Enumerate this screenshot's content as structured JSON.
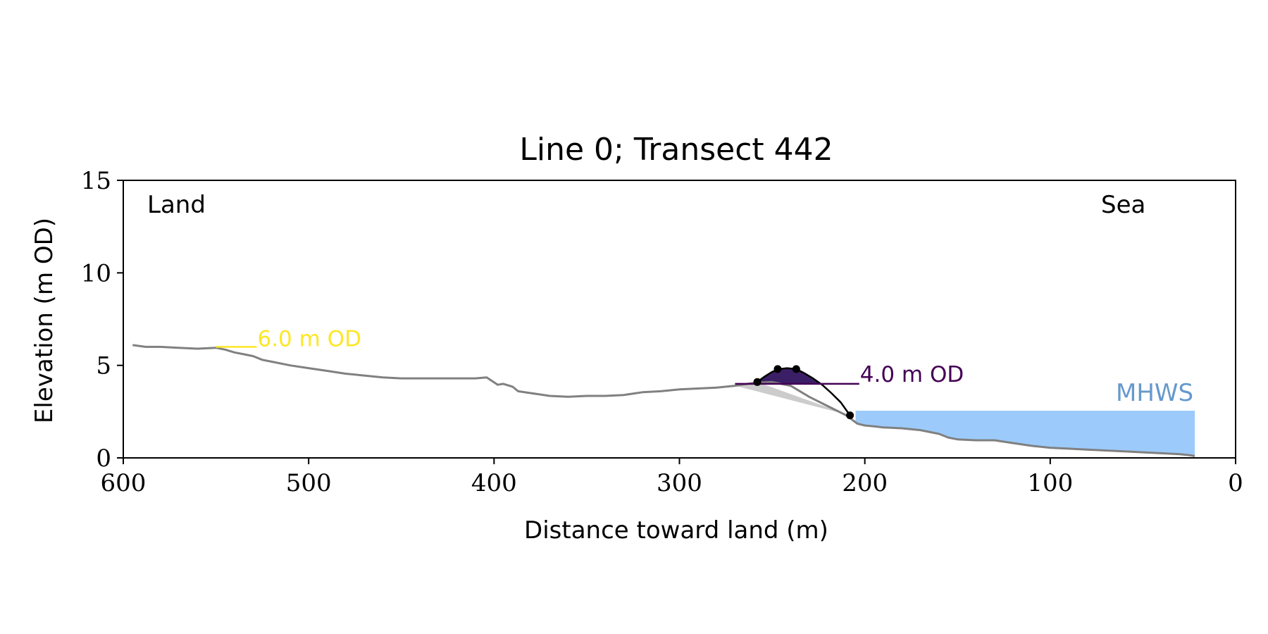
{
  "chart_data": {
    "type": "line",
    "title": "Line 0; Transect 442",
    "xlabel": "Distance toward land (m)",
    "ylabel": "Elevation (m OD)",
    "xlim": [
      600,
      0
    ],
    "ylim": [
      0,
      15
    ],
    "xticks": [
      600,
      500,
      400,
      300,
      200,
      100,
      0
    ],
    "yticks": [
      0,
      5,
      10,
      15
    ],
    "grid": false,
    "annotations": {
      "land": "Land",
      "sea": "Sea",
      "mhws": "MHWS",
      "threshold_high": "6.0 m OD",
      "threshold_low": "4.0 m OD"
    },
    "colors": {
      "profile": "#808080",
      "dune": "#3b1f66",
      "dune_outline": "#000000",
      "threshold_high": "#fde725",
      "threshold_low": "#440154",
      "mhws_fill": "#9ccbfb",
      "mhws_text": "#6699cc",
      "shadow": "#cccccc"
    },
    "profile": {
      "x": [
        595,
        588,
        580,
        570,
        560,
        550,
        545,
        540,
        535,
        530,
        525,
        520,
        510,
        500,
        490,
        480,
        470,
        460,
        450,
        440,
        430,
        420,
        410,
        404,
        401,
        398,
        395,
        390,
        387,
        380,
        370,
        360,
        350,
        340,
        330,
        320,
        310,
        300,
        290,
        280,
        270,
        260,
        250,
        240,
        230,
        220,
        210,
        206,
        204,
        200,
        195,
        190,
        180,
        170,
        160,
        155,
        150,
        140,
        130,
        120,
        110,
        100,
        90,
        80,
        70,
        60,
        50,
        40,
        30,
        25,
        22
      ],
      "y": [
        6.1,
        6.0,
        6.0,
        5.95,
        5.9,
        5.95,
        5.85,
        5.7,
        5.6,
        5.5,
        5.3,
        5.2,
        5.0,
        4.85,
        4.7,
        4.55,
        4.45,
        4.35,
        4.3,
        4.3,
        4.3,
        4.3,
        4.3,
        4.35,
        4.15,
        3.95,
        4.0,
        3.85,
        3.6,
        3.5,
        3.35,
        3.3,
        3.35,
        3.35,
        3.4,
        3.55,
        3.6,
        3.7,
        3.75,
        3.8,
        3.9,
        4.05,
        4.1,
        3.9,
        3.3,
        2.8,
        2.3,
        2.0,
        1.85,
        1.75,
        1.7,
        1.65,
        1.6,
        1.5,
        1.3,
        1.1,
        1.0,
        0.95,
        0.95,
        0.8,
        0.65,
        0.55,
        0.5,
        0.45,
        0.4,
        0.35,
        0.3,
        0.25,
        0.2,
        0.15,
        0.1
      ]
    },
    "dune_crest": {
      "x": [
        258,
        254,
        250,
        246,
        242,
        237,
        233,
        228,
        223,
        218,
        213,
        208
      ],
      "y": [
        4.1,
        4.4,
        4.65,
        4.8,
        4.85,
        4.8,
        4.6,
        4.3,
        3.95,
        3.5,
        3.0,
        2.3
      ]
    },
    "dune_points": {
      "x": [
        258,
        247,
        237,
        208
      ],
      "y": [
        4.1,
        4.8,
        4.8,
        2.3
      ]
    },
    "threshold_lines": [
      {
        "label": "6.0 m OD",
        "value": 6.0,
        "x_start": 550,
        "x_end": 528
      },
      {
        "label": "4.0 m OD",
        "value": 4.0,
        "x_start": 270,
        "x_end": 203
      }
    ],
    "mhws": {
      "label": "MHWS",
      "value": 2.55,
      "x_start": 205,
      "x_end": 22
    }
  }
}
